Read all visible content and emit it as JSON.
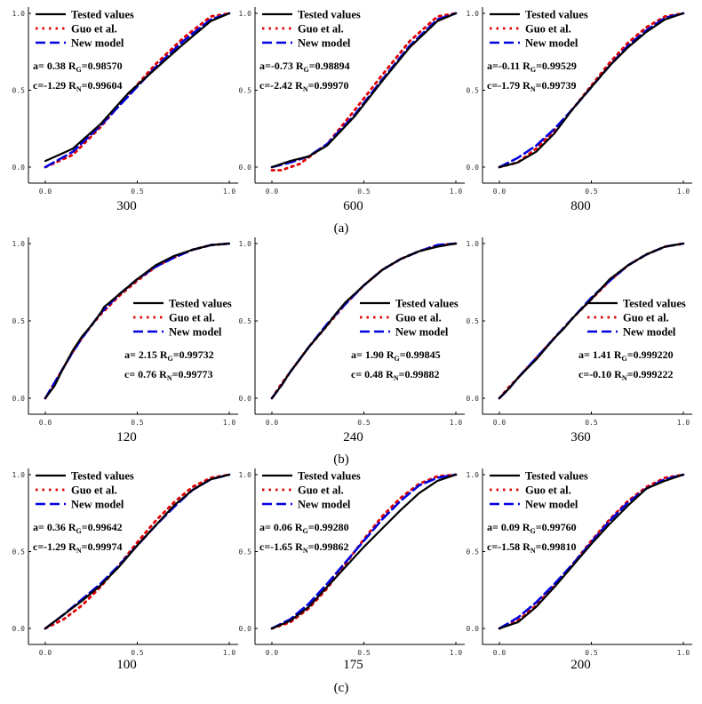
{
  "legend": {
    "tested": "Tested values",
    "guo": "Guo et al.",
    "new": "New model"
  },
  "colors": {
    "tested": "#000000",
    "guo": "#e00000",
    "new": "#0000e0"
  },
  "group_labels": [
    "(a)",
    "(b)",
    "(c)"
  ],
  "axis_ticks": {
    "x": [
      "0.0",
      "0.5",
      "1.0"
    ],
    "y": [
      "0.0",
      "0.5",
      "1.0"
    ]
  },
  "chart_data": [
    {
      "type": "line",
      "label": "300",
      "group": 0,
      "col": 0,
      "legend_pos": "top-left",
      "a": "a= 0.38",
      "rg": "=0.98570",
      "c": "c=-1.29",
      "rn": "=0.99604",
      "xlim": [
        0,
        1
      ],
      "ylim": [
        0,
        1
      ],
      "series": [
        {
          "key": "tested",
          "x": [
            0,
            0.15,
            0.3,
            0.45,
            0.6,
            0.75,
            0.9,
            1
          ],
          "y": [
            0.04,
            0.12,
            0.28,
            0.48,
            0.64,
            0.8,
            0.95,
            1
          ]
        },
        {
          "key": "guo",
          "x": [
            0,
            0.15,
            0.3,
            0.45,
            0.6,
            0.75,
            0.9,
            1
          ],
          "y": [
            0,
            0.08,
            0.26,
            0.47,
            0.67,
            0.84,
            0.98,
            1
          ]
        },
        {
          "key": "new",
          "x": [
            0,
            0.15,
            0.3,
            0.45,
            0.6,
            0.75,
            0.9,
            1
          ],
          "y": [
            0,
            0.1,
            0.27,
            0.46,
            0.65,
            0.82,
            0.96,
            1
          ]
        }
      ]
    },
    {
      "type": "line",
      "label": "600",
      "group": 0,
      "col": 1,
      "legend_pos": "top-left",
      "a": "a=-0.73",
      "rg": "=0.98894",
      "c": "c=-2.42",
      "rn": "=0.99970",
      "xlim": [
        0,
        1
      ],
      "ylim": [
        0,
        1
      ],
      "series": [
        {
          "key": "tested",
          "x": [
            0,
            0.1,
            0.2,
            0.3,
            0.45,
            0.6,
            0.75,
            0.9,
            1
          ],
          "y": [
            0,
            0.04,
            0.07,
            0.14,
            0.33,
            0.56,
            0.78,
            0.95,
            1
          ]
        },
        {
          "key": "guo",
          "x": [
            0,
            0.05,
            0.15,
            0.3,
            0.45,
            0.6,
            0.75,
            0.9,
            1
          ],
          "y": [
            -0.02,
            -0.02,
            0.02,
            0.15,
            0.37,
            0.6,
            0.82,
            0.98,
            1
          ]
        },
        {
          "key": "new",
          "x": [
            0,
            0.1,
            0.2,
            0.3,
            0.45,
            0.6,
            0.75,
            0.9,
            1
          ],
          "y": [
            0,
            0.03,
            0.07,
            0.15,
            0.34,
            0.57,
            0.79,
            0.96,
            1
          ]
        }
      ]
    },
    {
      "type": "line",
      "label": "800",
      "group": 0,
      "col": 2,
      "legend_pos": "top-right",
      "a": "a=-0.11",
      "rg": "=0.99529",
      "c": "c=-1.79",
      "rn": "=0.99739",
      "xlim": [
        0,
        1
      ],
      "ylim": [
        0,
        1
      ],
      "series": [
        {
          "key": "tested",
          "x": [
            0,
            0.1,
            0.2,
            0.3,
            0.4,
            0.5,
            0.6,
            0.7,
            0.8,
            0.9,
            1
          ],
          "y": [
            0,
            0.03,
            0.1,
            0.22,
            0.38,
            0.52,
            0.66,
            0.78,
            0.88,
            0.96,
            1
          ]
        },
        {
          "key": "guo",
          "x": [
            0,
            0.1,
            0.2,
            0.3,
            0.4,
            0.5,
            0.6,
            0.7,
            0.8,
            0.9,
            1
          ],
          "y": [
            0,
            0.03,
            0.12,
            0.24,
            0.38,
            0.53,
            0.68,
            0.81,
            0.91,
            0.98,
            1
          ]
        },
        {
          "key": "new",
          "x": [
            0,
            0.1,
            0.2,
            0.3,
            0.4,
            0.5,
            0.6,
            0.7,
            0.8,
            0.9,
            1
          ],
          "y": [
            0,
            0.06,
            0.14,
            0.25,
            0.38,
            0.52,
            0.66,
            0.79,
            0.89,
            0.97,
            1
          ]
        }
      ]
    },
    {
      "type": "line",
      "label": "120",
      "group": 1,
      "col": 0,
      "legend_pos": "bottom-right",
      "a": "a= 2.15",
      "rg": "=0.99732",
      "c": "c= 0.76",
      "rn": "=0.99773",
      "xlim": [
        0,
        1
      ],
      "ylim": [
        0,
        1
      ],
      "series": [
        {
          "key": "tested",
          "x": [
            0,
            0.05,
            0.1,
            0.15,
            0.2,
            0.25,
            0.3,
            0.32,
            0.4,
            0.5,
            0.6,
            0.7,
            0.8,
            0.9,
            1
          ],
          "y": [
            0,
            0.08,
            0.2,
            0.31,
            0.4,
            0.47,
            0.55,
            0.59,
            0.67,
            0.77,
            0.86,
            0.92,
            0.96,
            0.99,
            1
          ]
        },
        {
          "key": "guo",
          "x": [
            0,
            0.05,
            0.1,
            0.15,
            0.2,
            0.25,
            0.3,
            0.4,
            0.5,
            0.6,
            0.7,
            0.8,
            0.9,
            1
          ],
          "y": [
            0,
            0.1,
            0.2,
            0.3,
            0.39,
            0.47,
            0.54,
            0.66,
            0.76,
            0.85,
            0.91,
            0.96,
            0.99,
            1
          ]
        },
        {
          "key": "new",
          "x": [
            0,
            0.05,
            0.1,
            0.15,
            0.2,
            0.25,
            0.3,
            0.4,
            0.5,
            0.6,
            0.7,
            0.8,
            0.9,
            1
          ],
          "y": [
            0,
            0.1,
            0.2,
            0.3,
            0.39,
            0.47,
            0.55,
            0.67,
            0.77,
            0.85,
            0.91,
            0.96,
            0.99,
            1
          ]
        }
      ]
    },
    {
      "type": "line",
      "label": "240",
      "group": 1,
      "col": 1,
      "legend_pos": "bottom-right",
      "a": "a= 1.90",
      "rg": "=0.99845",
      "c": "c= 0.48",
      "rn": "=0.99882",
      "xlim": [
        0,
        1
      ],
      "ylim": [
        0,
        1
      ],
      "series": [
        {
          "key": "tested",
          "x": [
            0,
            0.05,
            0.1,
            0.15,
            0.2,
            0.25,
            0.3,
            0.35,
            0.4,
            0.5,
            0.6,
            0.7,
            0.8,
            0.9,
            1
          ],
          "y": [
            0,
            0.08,
            0.17,
            0.25,
            0.33,
            0.4,
            0.47,
            0.55,
            0.62,
            0.73,
            0.83,
            0.9,
            0.95,
            0.98,
            1
          ]
        },
        {
          "key": "guo",
          "x": [
            0,
            0.05,
            0.1,
            0.2,
            0.3,
            0.4,
            0.5,
            0.6,
            0.7,
            0.8,
            0.9,
            1
          ],
          "y": [
            0,
            0.09,
            0.17,
            0.33,
            0.47,
            0.61,
            0.73,
            0.83,
            0.9,
            0.95,
            0.99,
            1
          ]
        },
        {
          "key": "new",
          "x": [
            0,
            0.05,
            0.1,
            0.2,
            0.3,
            0.4,
            0.5,
            0.6,
            0.7,
            0.8,
            0.9,
            1
          ],
          "y": [
            0,
            0.08,
            0.17,
            0.33,
            0.48,
            0.61,
            0.73,
            0.83,
            0.9,
            0.95,
            0.99,
            1
          ]
        }
      ]
    },
    {
      "type": "line",
      "label": "360",
      "group": 1,
      "col": 2,
      "legend_pos": "bottom-right",
      "a": "a= 1.41",
      "rg": "=0.999220",
      "c": "c=-0.10",
      "rn": "=0.999222",
      "xlim": [
        0,
        1
      ],
      "ylim": [
        0,
        1
      ],
      "series": [
        {
          "key": "tested",
          "x": [
            0,
            0.05,
            0.1,
            0.15,
            0.2,
            0.25,
            0.3,
            0.35,
            0.4,
            0.5,
            0.6,
            0.7,
            0.8,
            0.9,
            1
          ],
          "y": [
            0,
            0.06,
            0.13,
            0.19,
            0.25,
            0.32,
            0.39,
            0.45,
            0.52,
            0.64,
            0.77,
            0.86,
            0.93,
            0.98,
            1
          ]
        },
        {
          "key": "guo",
          "x": [
            0,
            0.05,
            0.1,
            0.2,
            0.3,
            0.4,
            0.5,
            0.6,
            0.7,
            0.8,
            0.9,
            1
          ],
          "y": [
            0,
            0.07,
            0.13,
            0.26,
            0.39,
            0.52,
            0.64,
            0.76,
            0.86,
            0.93,
            0.98,
            1
          ]
        },
        {
          "key": "new",
          "x": [
            0,
            0.05,
            0.1,
            0.2,
            0.3,
            0.4,
            0.5,
            0.6,
            0.7,
            0.8,
            0.9,
            1
          ],
          "y": [
            0,
            0.06,
            0.13,
            0.26,
            0.39,
            0.52,
            0.65,
            0.76,
            0.86,
            0.93,
            0.98,
            1
          ]
        }
      ]
    },
    {
      "type": "line",
      "label": "100",
      "group": 2,
      "col": 0,
      "legend_pos": "top-left",
      "a": "a= 0.36",
      "rg": "=0.99642",
      "c": "c=-1.29",
      "rn": "=0.99974",
      "xlim": [
        0,
        1
      ],
      "ylim": [
        0,
        1
      ],
      "series": [
        {
          "key": "tested",
          "x": [
            0,
            0.1,
            0.2,
            0.3,
            0.4,
            0.5,
            0.6,
            0.7,
            0.8,
            0.9,
            1
          ],
          "y": [
            0,
            0.09,
            0.18,
            0.28,
            0.4,
            0.54,
            0.67,
            0.8,
            0.9,
            0.97,
            1
          ]
        },
        {
          "key": "guo",
          "x": [
            0,
            0.1,
            0.2,
            0.3,
            0.4,
            0.5,
            0.6,
            0.7,
            0.8,
            0.9,
            1
          ],
          "y": [
            0,
            0.06,
            0.15,
            0.27,
            0.41,
            0.56,
            0.7,
            0.82,
            0.92,
            0.98,
            1
          ]
        },
        {
          "key": "new",
          "x": [
            0,
            0.1,
            0.2,
            0.3,
            0.4,
            0.5,
            0.6,
            0.7,
            0.8,
            0.9,
            1
          ],
          "y": [
            0,
            0.09,
            0.19,
            0.29,
            0.41,
            0.54,
            0.67,
            0.79,
            0.9,
            0.97,
            1
          ]
        }
      ]
    },
    {
      "type": "line",
      "label": "175",
      "group": 2,
      "col": 1,
      "legend_pos": "top-left",
      "a": "a= 0.06",
      "rg": "=0.99280",
      "c": "c=-1.65",
      "rn": "=0.99862",
      "xlim": [
        0,
        1
      ],
      "ylim": [
        0,
        1
      ],
      "series": [
        {
          "key": "tested",
          "x": [
            0,
            0.1,
            0.2,
            0.3,
            0.4,
            0.5,
            0.6,
            0.7,
            0.8,
            0.9,
            1
          ],
          "y": [
            0,
            0.05,
            0.14,
            0.27,
            0.4,
            0.53,
            0.65,
            0.77,
            0.88,
            0.96,
            1
          ]
        },
        {
          "key": "guo",
          "x": [
            0,
            0.1,
            0.2,
            0.3,
            0.4,
            0.5,
            0.6,
            0.7,
            0.8,
            0.9,
            1
          ],
          "y": [
            0,
            0.04,
            0.13,
            0.26,
            0.42,
            0.58,
            0.73,
            0.85,
            0.94,
            0.99,
            1
          ]
        },
        {
          "key": "new",
          "x": [
            0,
            0.1,
            0.2,
            0.3,
            0.4,
            0.5,
            0.6,
            0.7,
            0.8,
            0.9,
            1
          ],
          "y": [
            0,
            0.06,
            0.16,
            0.29,
            0.43,
            0.57,
            0.71,
            0.83,
            0.93,
            0.98,
            1
          ]
        }
      ]
    },
    {
      "type": "line",
      "label": "200",
      "group": 2,
      "col": 2,
      "legend_pos": "top-right",
      "a": "a= 0.09",
      "rg": "=0.99760",
      "c": "c=-1.58",
      "rn": "=0.99810",
      "xlim": [
        0,
        1
      ],
      "ylim": [
        0,
        1
      ],
      "series": [
        {
          "key": "tested",
          "x": [
            0,
            0.1,
            0.2,
            0.3,
            0.4,
            0.5,
            0.6,
            0.7,
            0.8,
            0.9,
            1
          ],
          "y": [
            0,
            0.04,
            0.14,
            0.27,
            0.41,
            0.55,
            0.68,
            0.8,
            0.91,
            0.96,
            1
          ]
        },
        {
          "key": "guo",
          "x": [
            0,
            0.1,
            0.2,
            0.3,
            0.4,
            0.5,
            0.6,
            0.7,
            0.8,
            0.9,
            1
          ],
          "y": [
            0,
            0.05,
            0.15,
            0.28,
            0.42,
            0.57,
            0.71,
            0.83,
            0.92,
            0.98,
            1
          ]
        },
        {
          "key": "new",
          "x": [
            0,
            0.1,
            0.2,
            0.3,
            0.4,
            0.5,
            0.6,
            0.7,
            0.8,
            0.9,
            1
          ],
          "y": [
            0,
            0.07,
            0.17,
            0.29,
            0.42,
            0.56,
            0.7,
            0.82,
            0.91,
            0.97,
            1
          ]
        }
      ]
    }
  ]
}
